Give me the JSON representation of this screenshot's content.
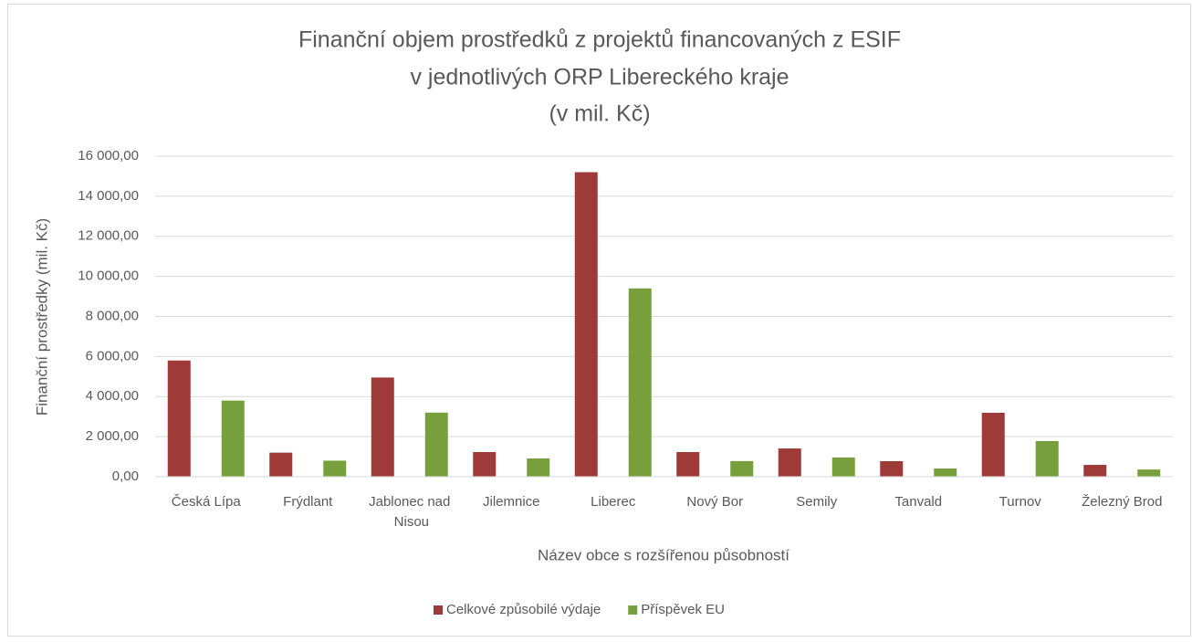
{
  "chart_data": {
    "type": "bar",
    "title": [
      "Finanční objem prostředků z projektů financovaných z ESIF",
      "v jednotlivých ORP Libereckého kraje",
      "(v mil. Kč)"
    ],
    "x_label": "Název obce s rozšířenou působností",
    "y_label": "Finanční prostředky (mil. Kč)",
    "categories": [
      "Česká Lípa",
      "Frýdlant",
      "Jablonec nad Nisou",
      "Jilemnice",
      "Liberec",
      "Nový Bor",
      "Semily",
      "Tanvald",
      "Turnov",
      "Železný Brod"
    ],
    "series": [
      {
        "name": "Celkové způsobilé výdaje",
        "color": "#9e3a38",
        "values": [
          5800,
          1200,
          4950,
          1230,
          15200,
          1230,
          1410,
          775,
          3190,
          590
        ]
      },
      {
        "name": "Příspěvek EU",
        "color": "#77a03c",
        "values": [
          3800,
          800,
          3200,
          910,
          9400,
          780,
          960,
          410,
          1780,
          360
        ]
      }
    ],
    "ylim": [
      0,
      16000
    ],
    "yticks": [
      {
        "value": 0,
        "label": "0,00"
      },
      {
        "value": 2000,
        "label": "2 000,00"
      },
      {
        "value": 4000,
        "label": "4 000,00"
      },
      {
        "value": 6000,
        "label": "6 000,00"
      },
      {
        "value": 8000,
        "label": "8 000,00"
      },
      {
        "value": 10000,
        "label": "10 000,00"
      },
      {
        "value": 12000,
        "label": "12 000,00"
      },
      {
        "value": 14000,
        "label": "14 000,00"
      },
      {
        "value": 16000,
        "label": "16 000,00"
      }
    ],
    "grid": true,
    "legend": "bottom"
  }
}
